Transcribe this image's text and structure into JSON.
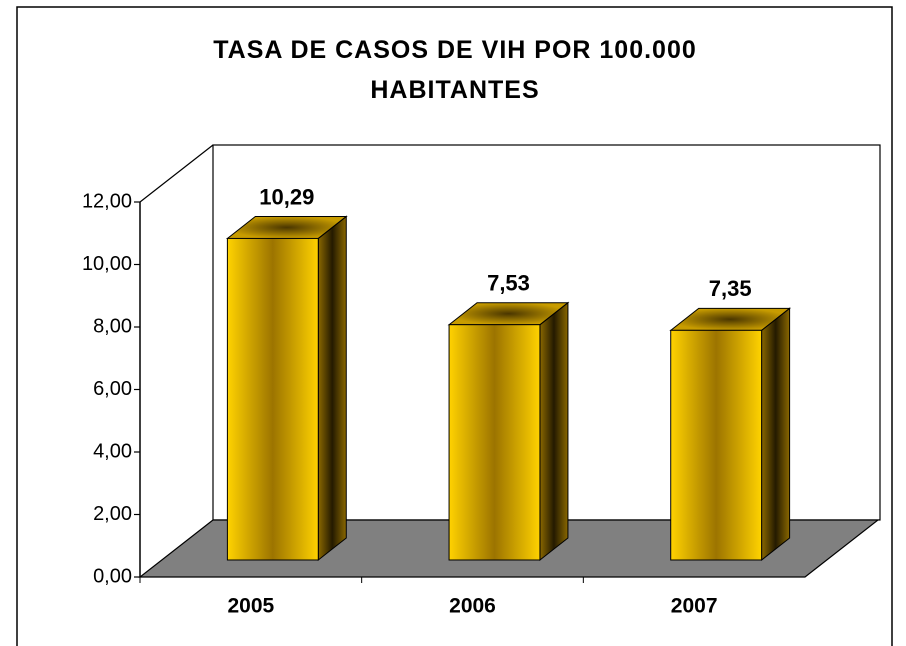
{
  "chart_data": {
    "type": "bar3d",
    "title": "TASA DE CASOS DE VIH POR 100.000 HABITANTES",
    "categories": [
      "2005",
      "2006",
      "2007"
    ],
    "values": [
      10.29,
      7.53,
      7.35
    ],
    "value_labels": [
      "10,29",
      "7,53",
      "7,35"
    ],
    "color": "#ffcc00",
    "ylim": [
      0,
      12
    ],
    "yticks": [
      {
        "value": 0,
        "label": "0,00"
      },
      {
        "value": 2,
        "label": "2,00"
      },
      {
        "value": 4,
        "label": "4,00"
      },
      {
        "value": 6,
        "label": "6,00"
      },
      {
        "value": 8,
        "label": "8,00"
      },
      {
        "value": 10,
        "label": "10,00"
      },
      {
        "value": 12,
        "label": "12,00"
      }
    ],
    "floor_color": "#808080",
    "grid": false
  }
}
